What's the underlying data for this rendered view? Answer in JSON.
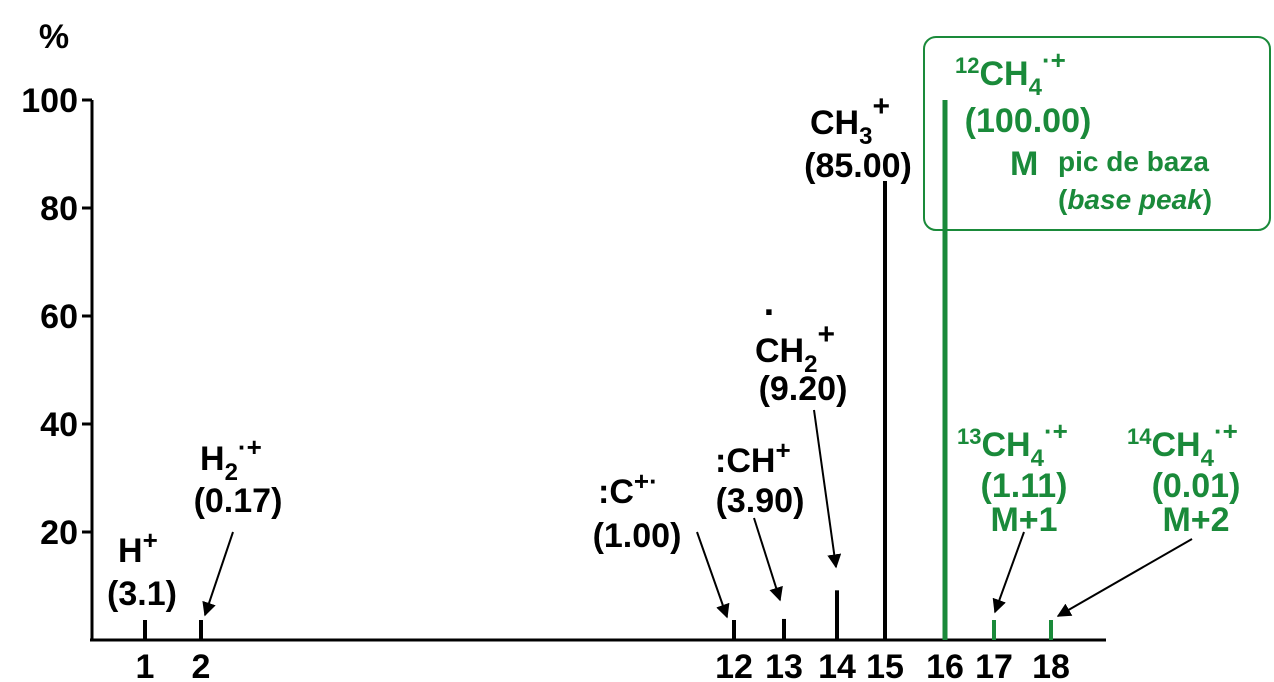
{
  "colors": {
    "black": "#000000",
    "green": "#1a8a3a"
  },
  "y_axis_label": "%",
  "chart_data": {
    "type": "bar",
    "title": "",
    "xlabel": "",
    "ylabel": "%",
    "ylim": [
      0,
      100
    ],
    "y_ticks": [
      "20",
      "40",
      "60",
      "80",
      "100"
    ],
    "x_ticks": [
      "1",
      "2",
      "12",
      "13",
      "14",
      "15",
      "16",
      "17",
      "18"
    ],
    "bars": [
      {
        "mz": 1,
        "value": 3.1,
        "color": "black"
      },
      {
        "mz": 2,
        "value": 0.17,
        "color": "black"
      },
      {
        "mz": 12,
        "value": 1.0,
        "color": "black"
      },
      {
        "mz": 13,
        "value": 3.9,
        "color": "black"
      },
      {
        "mz": 14,
        "value": 9.2,
        "color": "black"
      },
      {
        "mz": 15,
        "value": 85.0,
        "color": "black"
      },
      {
        "mz": 16,
        "value": 100.0,
        "color": "green"
      },
      {
        "mz": 17,
        "value": 1.11,
        "color": "green"
      },
      {
        "mz": 18,
        "value": 0.01,
        "color": "green"
      }
    ]
  },
  "annotations": {
    "h": {
      "ion_sup": "+",
      "value": "(3.1)"
    },
    "h2": {
      "ion_sup": "·+",
      "value": "(0.17)"
    },
    "c": {
      "ion": ":C",
      "ion_sup": "+·",
      "value": "(1.00)"
    },
    "ch": {
      "ion": ":CH",
      "ion_sup": "+",
      "value": "(3.90)"
    },
    "ch2": {
      "dot": "·",
      "ion_sup": "+",
      "value": "(9.20)"
    },
    "ch3": {
      "ion_sup": "+",
      "value": "(85.00)"
    },
    "m": {
      "mass_sup": "12",
      "ion_sup": "·+",
      "value": "(100.00)",
      "label": "M",
      "note": "pic de baza",
      "note2_open": "(",
      "note2_italic": "base peak",
      "note2_close": ")"
    },
    "m1": {
      "mass_sup": "13",
      "ion_sup": "·+",
      "value": "(1.11)",
      "label": "M+1"
    },
    "m2": {
      "mass_sup": "14",
      "ion_sup": "·+",
      "value": "(0.01)",
      "label": "M+2"
    }
  }
}
